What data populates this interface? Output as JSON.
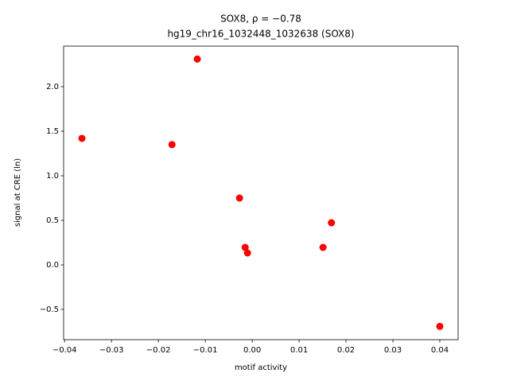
{
  "chart_data": {
    "type": "scatter",
    "title": "SOX8, ρ = −0.78",
    "subtitle": "hg19_chr16_1032448_1032638 (SOX8)",
    "x_label": "motif activity",
    "y_label": "signal at CRE (ln)",
    "color": "#ff0000",
    "x": [
      -0.0363,
      -0.0117,
      -0.0171,
      -0.0027,
      -0.0015,
      -0.001,
      0.0151,
      0.0169,
      0.04
    ],
    "values": [
      1.42,
      2.31,
      1.35,
      0.75,
      0.196,
      0.134,
      0.196,
      0.473,
      -0.69
    ],
    "xlim": [
      -0.0402,
      0.0439
    ],
    "ylim": [
      -0.839,
      2.455
    ],
    "xticks": [
      {
        "value": -0.04,
        "label": "−0.04"
      },
      {
        "value": -0.03,
        "label": "−0.03"
      },
      {
        "value": -0.02,
        "label": "−0.02"
      },
      {
        "value": -0.01,
        "label": "−0.01"
      },
      {
        "value": 0,
        "label": "0.00"
      },
      0.01,
      0.02,
      0.03,
      0.04
    ],
    "yticks": [
      {
        "value": -0.5,
        "label": "−0.5"
      },
      {
        "value": 0,
        "label": "0.0"
      },
      0.5,
      {
        "value": 1,
        "label": "1.0"
      },
      1.5,
      {
        "value": 2,
        "label": "2.0"
      }
    ]
  }
}
